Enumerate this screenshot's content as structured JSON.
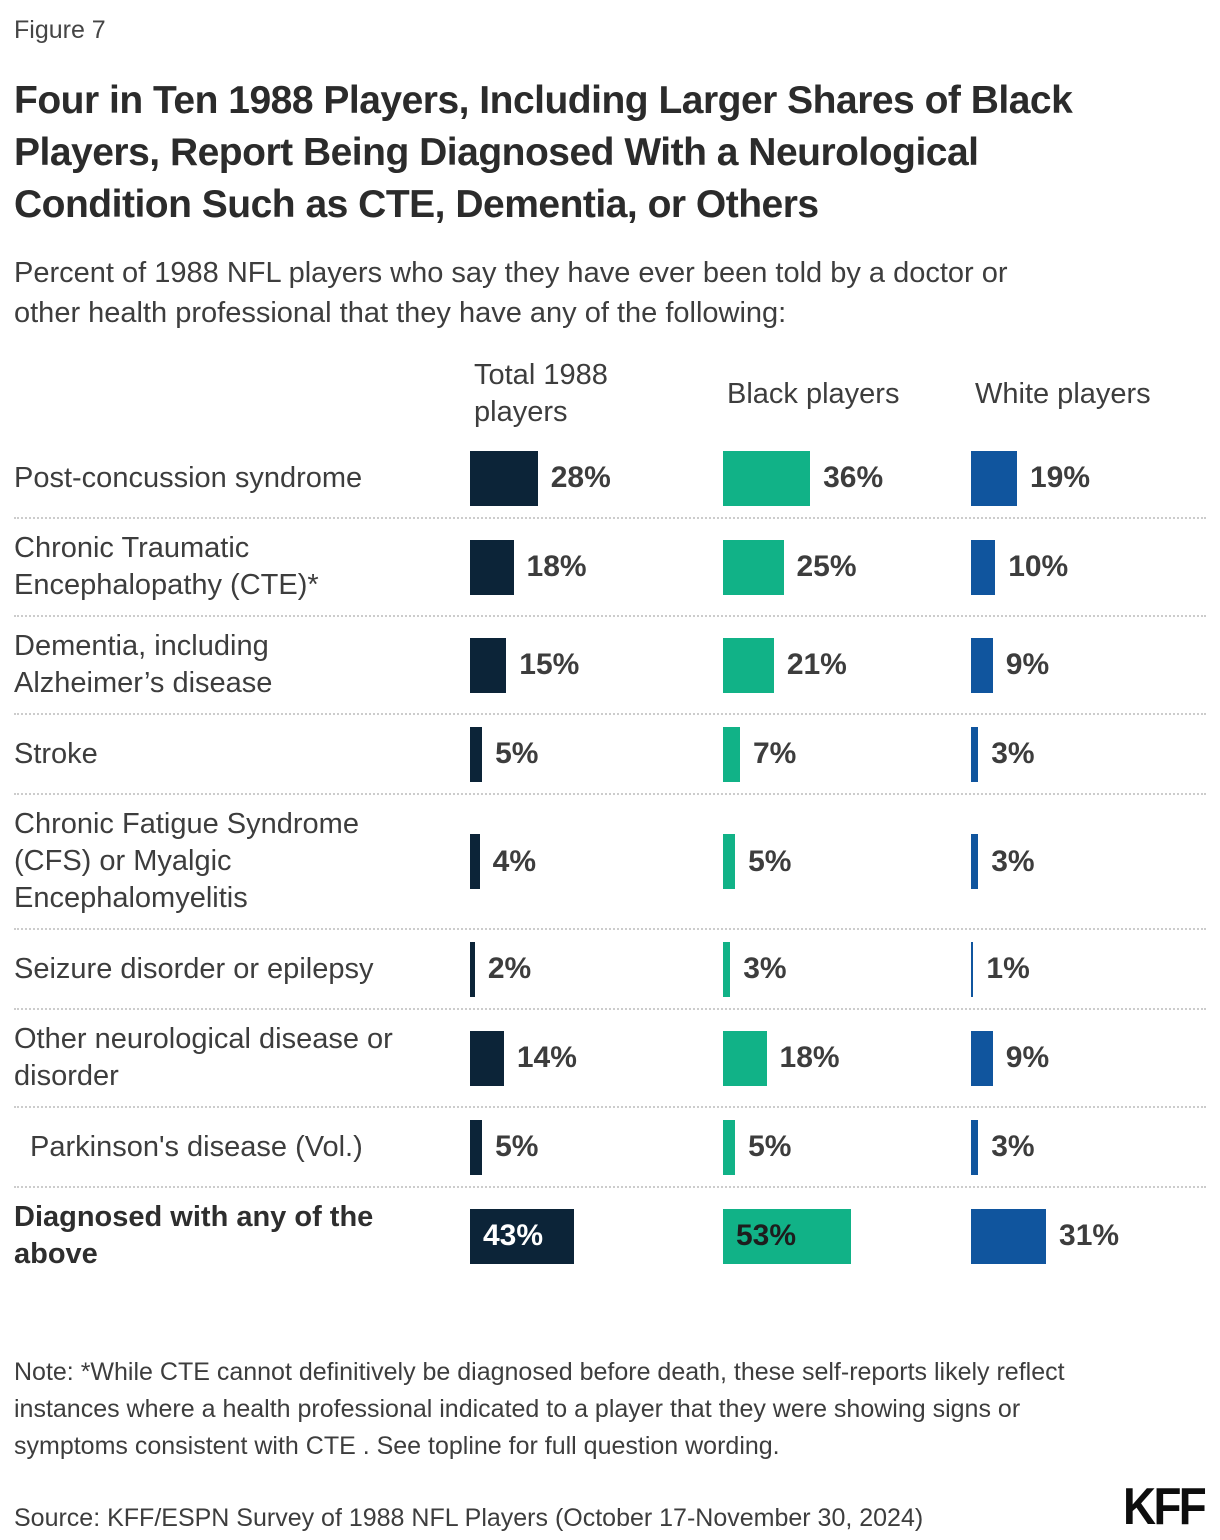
{
  "figure_label": "Figure 7",
  "title": "Four in Ten 1988 Players, Including Larger Shares of Black Players, Report Being Diagnosed With a Neurological Condition Such as CTE, Dementia, or Others",
  "subtitle": "Percent of 1988 NFL players who say they have ever been told by a doctor or other health professional that they have any of the following:",
  "note": "Note: *While CTE cannot definitively be diagnosed before death, these self-reports likely reflect instances where a health professional indicated to a player that they were showing signs or symptoms consistent with CTE . See topline for full question wording.",
  "source": "Source: KFF/ESPN Survey of 1988 NFL Players (October 17-November 30, 2024)",
  "logo": "KFF",
  "colors": {
    "total_bar": "#0c2438",
    "black_bar": "#11b287",
    "white_bar": "#10559e",
    "inside_label_on_navy": "#ffffff",
    "inside_label_on_green": "#1d1d1d",
    "separator": "#cccccc"
  },
  "chart_data": {
    "type": "bar",
    "orientation": "horizontal",
    "unit": "%",
    "xlim": [
      0,
      100
    ],
    "grid": false,
    "legend_position": "column-headers",
    "categories": [
      "Post-concussion syndrome",
      "Chronic Traumatic Encephalopathy (CTE)*",
      "Dementia, including Alzheimer’s disease",
      "Stroke",
      "Chronic Fatigue Syndrome (CFS) or Myalgic Encephalomyelitis",
      "Seizure disorder or epilepsy",
      "Other neurological disease or disorder",
      "Parkinson's disease (Vol.)",
      "Diagnosed with any of the above"
    ],
    "series": [
      {
        "name": "Total 1988 players",
        "color": "#0c2438",
        "values": [
          28,
          18,
          15,
          5,
          4,
          2,
          14,
          5,
          43
        ]
      },
      {
        "name": "Black players",
        "color": "#11b287",
        "values": [
          36,
          25,
          21,
          7,
          5,
          3,
          18,
          5,
          53
        ]
      },
      {
        "name": "White players",
        "color": "#10559e",
        "values": [
          19,
          10,
          9,
          3,
          3,
          1,
          9,
          3,
          31
        ]
      }
    ],
    "indent_rows": [
      7
    ],
    "emphasis_row": 8,
    "inside_value_labels": [
      {
        "row": 8,
        "series": 0,
        "text_color": "#ffffff"
      },
      {
        "row": 8,
        "series": 1,
        "text_color": "#1d1d1d"
      }
    ]
  }
}
